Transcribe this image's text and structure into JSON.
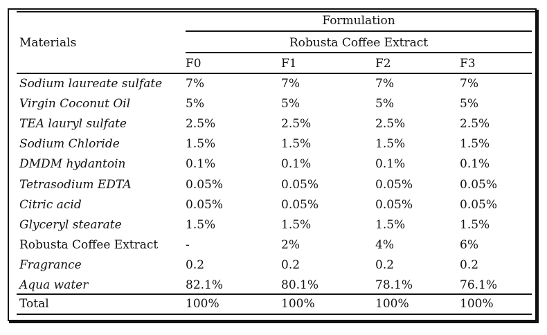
{
  "header": {
    "materials_label": "Materials",
    "formulation_label": "Formulation",
    "group_label": "Robusta Coffee Extract",
    "columns": [
      "F0",
      "F1",
      "F2",
      "F3"
    ]
  },
  "rows": [
    {
      "material": "Sodium laureate sulfate",
      "values": [
        "7%",
        "7%",
        "7%",
        "7%"
      ]
    },
    {
      "material": "Virgin Coconut Oil",
      "values": [
        "5%",
        "5%",
        "5%",
        "5%"
      ]
    },
    {
      "material": "TEA lauryl sulfate",
      "values": [
        "2.5%",
        "2.5%",
        "2.5%",
        "2.5%"
      ]
    },
    {
      "material": "Sodium Chloride",
      "values": [
        "1.5%",
        "1.5%",
        "1.5%",
        "1.5%"
      ]
    },
    {
      "material": "DMDM hydantoin",
      "values": [
        "0.1%",
        "0.1%",
        "0.1%",
        "0.1%"
      ]
    },
    {
      "material": "Tetrasodium EDTA",
      "values": [
        "0.05%",
        "0.05%",
        "0.05%",
        "0.05%"
      ]
    },
    {
      "material": "Citric acid",
      "values": [
        "0.05%",
        "0.05%",
        "0.05%",
        "0.05%"
      ]
    },
    {
      "material": "Glyceryl stearate",
      "values": [
        "1.5%",
        "1.5%",
        "1.5%",
        "1.5%"
      ]
    },
    {
      "material": "Robusta Coffee Extract",
      "values": [
        "-",
        "2%",
        "4%",
        "6%"
      ]
    },
    {
      "material": "Fragrance",
      "values": [
        "0.2",
        "0.2",
        "0.2",
        "0.2"
      ]
    },
    {
      "material": "Aqua water",
      "values": [
        "82.1%",
        "80.1%",
        "78.1%",
        "76.1%"
      ]
    }
  ],
  "total": {
    "material": "Total",
    "values": [
      "100%",
      "100%",
      "100%",
      "100%"
    ]
  }
}
